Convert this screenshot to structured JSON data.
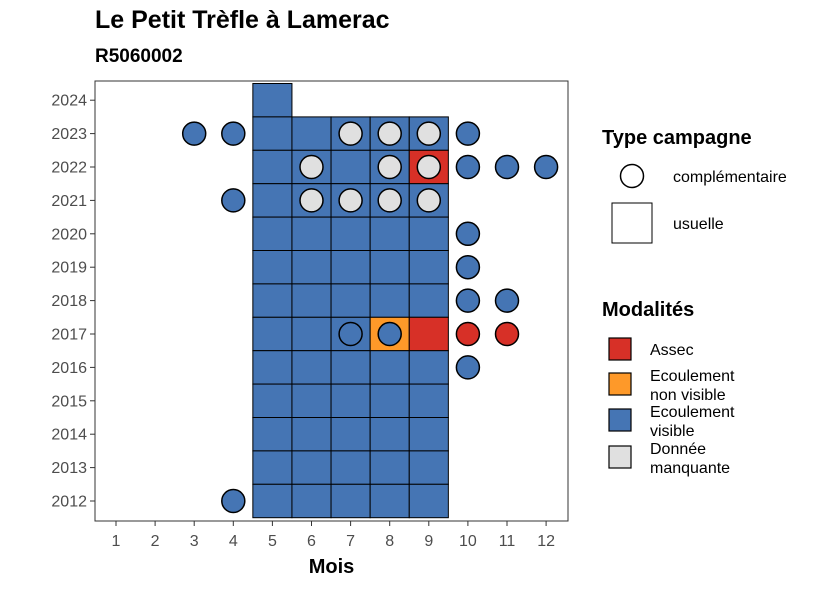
{
  "title": "Le Petit Trèfle à Lamerac",
  "subtitle": "R5060002",
  "colors": {
    "Assec": "#D73027",
    "Ecoulement non visible": "#FE9929",
    "Ecoulement visible": "#4575B4",
    "Donnée manquante": "#E0E0E0"
  },
  "chart_data": {
    "type": "heatmap",
    "title": "Le Petit Trèfle à Lamerac",
    "subtitle": "R5060002",
    "xlabel": "Mois",
    "ylabel": "",
    "x_ticks": [
      1,
      2,
      3,
      4,
      5,
      6,
      7,
      8,
      9,
      10,
      11,
      12
    ],
    "y_ticks": [
      2012,
      2013,
      2014,
      2015,
      2016,
      2017,
      2018,
      2019,
      2020,
      2021,
      2022,
      2023,
      2024
    ],
    "grid": false,
    "legend": {
      "placement": "right",
      "shape_title": "Type campagne",
      "shape_entries": [
        {
          "label": "complémentaire",
          "shape": "circle"
        },
        {
          "label": "usuelle",
          "shape": "square"
        }
      ],
      "color_title": "Modalités",
      "color_entries": [
        {
          "label": "Assec",
          "line1": "Assec",
          "line2": ""
        },
        {
          "label": "Ecoulement non visible",
          "line1": "Ecoulement",
          "line2": "non visible"
        },
        {
          "label": "Ecoulement visible",
          "line1": "Ecoulement",
          "line2": "visible"
        },
        {
          "label": "Donnée manquante",
          "line1": "Donnée",
          "line2": "manquante"
        }
      ]
    },
    "usuelle": [
      {
        "year": 2024,
        "month": 5,
        "modalite": "Ecoulement visible"
      },
      {
        "year": 2023,
        "month": 5,
        "modalite": "Ecoulement visible"
      },
      {
        "year": 2023,
        "month": 6,
        "modalite": "Ecoulement visible"
      },
      {
        "year": 2023,
        "month": 7,
        "modalite": "Ecoulement visible"
      },
      {
        "year": 2023,
        "month": 8,
        "modalite": "Ecoulement visible"
      },
      {
        "year": 2023,
        "month": 9,
        "modalite": "Ecoulement visible"
      },
      {
        "year": 2022,
        "month": 5,
        "modalite": "Ecoulement visible"
      },
      {
        "year": 2022,
        "month": 6,
        "modalite": "Ecoulement visible"
      },
      {
        "year": 2022,
        "month": 7,
        "modalite": "Ecoulement visible"
      },
      {
        "year": 2022,
        "month": 8,
        "modalite": "Ecoulement visible"
      },
      {
        "year": 2022,
        "month": 9,
        "modalite": "Assec"
      },
      {
        "year": 2021,
        "month": 5,
        "modalite": "Ecoulement visible"
      },
      {
        "year": 2021,
        "month": 6,
        "modalite": "Ecoulement visible"
      },
      {
        "year": 2021,
        "month": 7,
        "modalite": "Ecoulement visible"
      },
      {
        "year": 2021,
        "month": 8,
        "modalite": "Ecoulement visible"
      },
      {
        "year": 2021,
        "month": 9,
        "modalite": "Ecoulement visible"
      },
      {
        "year": 2020,
        "month": 5,
        "modalite": "Ecoulement visible"
      },
      {
        "year": 2020,
        "month": 6,
        "modalite": "Ecoulement visible"
      },
      {
        "year": 2020,
        "month": 7,
        "modalite": "Ecoulement visible"
      },
      {
        "year": 2020,
        "month": 8,
        "modalite": "Ecoulement visible"
      },
      {
        "year": 2020,
        "month": 9,
        "modalite": "Ecoulement visible"
      },
      {
        "year": 2019,
        "month": 5,
        "modalite": "Ecoulement visible"
      },
      {
        "year": 2019,
        "month": 6,
        "modalite": "Ecoulement visible"
      },
      {
        "year": 2019,
        "month": 7,
        "modalite": "Ecoulement visible"
      },
      {
        "year": 2019,
        "month": 8,
        "modalite": "Ecoulement visible"
      },
      {
        "year": 2019,
        "month": 9,
        "modalite": "Ecoulement visible"
      },
      {
        "year": 2018,
        "month": 5,
        "modalite": "Ecoulement visible"
      },
      {
        "year": 2018,
        "month": 6,
        "modalite": "Ecoulement visible"
      },
      {
        "year": 2018,
        "month": 7,
        "modalite": "Ecoulement visible"
      },
      {
        "year": 2018,
        "month": 8,
        "modalite": "Ecoulement visible"
      },
      {
        "year": 2018,
        "month": 9,
        "modalite": "Ecoulement visible"
      },
      {
        "year": 2017,
        "month": 5,
        "modalite": "Ecoulement visible"
      },
      {
        "year": 2017,
        "month": 6,
        "modalite": "Ecoulement visible"
      },
      {
        "year": 2017,
        "month": 7,
        "modalite": "Ecoulement visible"
      },
      {
        "year": 2017,
        "month": 8,
        "modalite": "Ecoulement non visible"
      },
      {
        "year": 2017,
        "month": 9,
        "modalite": "Assec"
      },
      {
        "year": 2016,
        "month": 5,
        "modalite": "Ecoulement visible"
      },
      {
        "year": 2016,
        "month": 6,
        "modalite": "Ecoulement visible"
      },
      {
        "year": 2016,
        "month": 7,
        "modalite": "Ecoulement visible"
      },
      {
        "year": 2016,
        "month": 8,
        "modalite": "Ecoulement visible"
      },
      {
        "year": 2016,
        "month": 9,
        "modalite": "Ecoulement visible"
      },
      {
        "year": 2015,
        "month": 5,
        "modalite": "Ecoulement visible"
      },
      {
        "year": 2015,
        "month": 6,
        "modalite": "Ecoulement visible"
      },
      {
        "year": 2015,
        "month": 7,
        "modalite": "Ecoulement visible"
      },
      {
        "year": 2015,
        "month": 8,
        "modalite": "Ecoulement visible"
      },
      {
        "year": 2015,
        "month": 9,
        "modalite": "Ecoulement visible"
      },
      {
        "year": 2014,
        "month": 5,
        "modalite": "Ecoulement visible"
      },
      {
        "year": 2014,
        "month": 6,
        "modalite": "Ecoulement visible"
      },
      {
        "year": 2014,
        "month": 7,
        "modalite": "Ecoulement visible"
      },
      {
        "year": 2014,
        "month": 8,
        "modalite": "Ecoulement visible"
      },
      {
        "year": 2014,
        "month": 9,
        "modalite": "Ecoulement visible"
      },
      {
        "year": 2013,
        "month": 5,
        "modalite": "Ecoulement visible"
      },
      {
        "year": 2013,
        "month": 6,
        "modalite": "Ecoulement visible"
      },
      {
        "year": 2013,
        "month": 7,
        "modalite": "Ecoulement visible"
      },
      {
        "year": 2013,
        "month": 8,
        "modalite": "Ecoulement visible"
      },
      {
        "year": 2013,
        "month": 9,
        "modalite": "Ecoulement visible"
      },
      {
        "year": 2012,
        "month": 5,
        "modalite": "Ecoulement visible"
      },
      {
        "year": 2012,
        "month": 6,
        "modalite": "Ecoulement visible"
      },
      {
        "year": 2012,
        "month": 7,
        "modalite": "Ecoulement visible"
      },
      {
        "year": 2012,
        "month": 8,
        "modalite": "Ecoulement visible"
      },
      {
        "year": 2012,
        "month": 9,
        "modalite": "Ecoulement visible"
      }
    ],
    "complementaire": [
      {
        "year": 2023,
        "month": 3,
        "modalite": "Ecoulement visible"
      },
      {
        "year": 2023,
        "month": 4,
        "modalite": "Ecoulement visible"
      },
      {
        "year": 2023,
        "month": 7,
        "modalite": "Donnée manquante"
      },
      {
        "year": 2023,
        "month": 8,
        "modalite": "Donnée manquante"
      },
      {
        "year": 2023,
        "month": 9,
        "modalite": "Donnée manquante"
      },
      {
        "year": 2023,
        "month": 10,
        "modalite": "Ecoulement visible"
      },
      {
        "year": 2022,
        "month": 6,
        "modalite": "Donnée manquante"
      },
      {
        "year": 2022,
        "month": 8,
        "modalite": "Donnée manquante"
      },
      {
        "year": 2022,
        "month": 9,
        "modalite": "Donnée manquante"
      },
      {
        "year": 2022,
        "month": 10,
        "modalite": "Ecoulement visible"
      },
      {
        "year": 2022,
        "month": 11,
        "modalite": "Ecoulement visible"
      },
      {
        "year": 2022,
        "month": 12,
        "modalite": "Ecoulement visible"
      },
      {
        "year": 2021,
        "month": 4,
        "modalite": "Ecoulement visible"
      },
      {
        "year": 2021,
        "month": 6,
        "modalite": "Donnée manquante"
      },
      {
        "year": 2021,
        "month": 7,
        "modalite": "Donnée manquante"
      },
      {
        "year": 2021,
        "month": 8,
        "modalite": "Donnée manquante"
      },
      {
        "year": 2021,
        "month": 9,
        "modalite": "Donnée manquante"
      },
      {
        "year": 2020,
        "month": 10,
        "modalite": "Ecoulement visible"
      },
      {
        "year": 2019,
        "month": 10,
        "modalite": "Ecoulement visible"
      },
      {
        "year": 2018,
        "month": 10,
        "modalite": "Ecoulement visible"
      },
      {
        "year": 2018,
        "month": 11,
        "modalite": "Ecoulement visible"
      },
      {
        "year": 2017,
        "month": 7,
        "modalite": "Ecoulement visible"
      },
      {
        "year": 2017,
        "month": 8,
        "modalite": "Ecoulement visible"
      },
      {
        "year": 2017,
        "month": 10,
        "modalite": "Assec"
      },
      {
        "year": 2017,
        "month": 11,
        "modalite": "Assec"
      },
      {
        "year": 2016,
        "month": 10,
        "modalite": "Ecoulement visible"
      },
      {
        "year": 2012,
        "month": 4,
        "modalite": "Ecoulement visible"
      }
    ]
  }
}
